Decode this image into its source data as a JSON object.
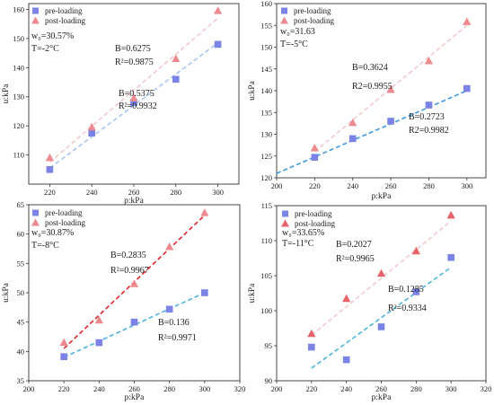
{
  "chart_data": [
    {
      "type": "scatter",
      "xlabel": "p:kPa",
      "ylabel": "u:kPa",
      "xlim": [
        210,
        310
      ],
      "ylim": [
        100,
        162
      ],
      "xticks": [
        "220",
        "240",
        "260",
        "280",
        "300"
      ],
      "yticks": [
        "110",
        "120",
        "130",
        "140",
        "150",
        "160"
      ],
      "legend": {
        "placement": "top-left",
        "entries": [
          "pre-loading",
          "post-loading"
        ]
      },
      "series": [
        {
          "name": "pre-loading",
          "marker": "square",
          "color": "#7b83e6",
          "x": [
            220,
            240,
            260,
            280,
            300
          ],
          "y": [
            105.0,
            117.5,
            128.0,
            136.0,
            148.0
          ],
          "fit": {
            "start": [
              220,
              105.5
            ],
            "end": [
              300,
              148.5
            ],
            "color": "#a7c6f1"
          }
        },
        {
          "name": "post-loading",
          "marker": "triangle",
          "color": "#ec8a8f",
          "x": [
            220,
            240,
            260,
            280,
            300
          ],
          "y": [
            109.0,
            119.5,
            129.5,
            143.0,
            159.5
          ],
          "fit": {
            "start": [
              220,
              107.5
            ],
            "end": [
              300,
              157.0
            ],
            "color": "#f3c9cd"
          }
        }
      ],
      "annotations": [
        "w₀=30.57%",
        "T=-2°C",
        "B=0.6275",
        "R²=0.9875",
        "B=0.5375",
        "R²=0.9932"
      ]
    },
    {
      "type": "scatter",
      "xlabel": "p:kPa",
      "ylabel": "u:kPa",
      "xlim": [
        200,
        310
      ],
      "ylim": [
        120,
        160
      ],
      "xticks": [
        "200",
        "220",
        "240",
        "260",
        "280",
        "300"
      ],
      "yticks": [
        "120",
        "125",
        "130",
        "135",
        "140",
        "145",
        "150",
        "155",
        "160"
      ],
      "legend": {
        "placement": "top-left",
        "entries": [
          "pre-loading",
          "post-loading"
        ]
      },
      "series": [
        {
          "name": "pre-loading",
          "marker": "square",
          "color": "#7b83e6",
          "x": [
            220,
            240,
            260,
            280,
            300
          ],
          "y": [
            124.7,
            129.0,
            133.0,
            136.7,
            140.5
          ],
          "fit": {
            "start": [
              200,
              121.0
            ],
            "end": [
              300,
              140.0
            ],
            "color": "#3d9ae6"
          }
        },
        {
          "name": "post-loading",
          "marker": "triangle",
          "color": "#ec8a8f",
          "x": [
            220,
            240,
            260,
            280,
            300
          ],
          "y": [
            126.8,
            132.6,
            140.2,
            146.8,
            155.8
          ],
          "fit": {
            "start": [
              220,
              126.0
            ],
            "end": [
              300,
              155.0
            ],
            "color": "#f3c9cd"
          }
        }
      ],
      "annotations": [
        "w₀=31.63",
        "T=-5°C",
        "B=0.3624",
        "R2=0.9955",
        "B=0.2723",
        "R2=0.9982"
      ]
    },
    {
      "type": "scatter",
      "xlabel": "p:kPa",
      "ylabel": "u:kPa",
      "xlim": [
        200,
        320
      ],
      "ylim": [
        35,
        65
      ],
      "xticks": [
        "200",
        "220",
        "240",
        "260",
        "280",
        "300",
        "320"
      ],
      "yticks": [
        "35",
        "40",
        "45",
        "50",
        "55",
        "60",
        "65"
      ],
      "legend": {
        "placement": "top-left",
        "entries": [
          "pre-loading",
          "post-loading"
        ]
      },
      "series": [
        {
          "name": "pre-loading",
          "marker": "square",
          "color": "#7b83e6",
          "x": [
            220,
            240,
            260,
            280,
            300
          ],
          "y": [
            39.1,
            41.5,
            45.0,
            47.2,
            50.0
          ],
          "fit": {
            "start": [
              220,
              39.0
            ],
            "end": [
              300,
              50.0
            ],
            "color": "#4fb3dc"
          }
        },
        {
          "name": "post-loading",
          "marker": "triangle",
          "color": "#ec8a8f",
          "x": [
            220,
            240,
            260,
            280,
            300
          ],
          "y": [
            41.5,
            45.3,
            51.5,
            57.8,
            63.6
          ],
          "fit": {
            "start": [
              220,
              40.5
            ],
            "end": [
              300,
              63.2
            ],
            "color": "#e1262d"
          }
        }
      ],
      "annotations": [
        "w₀=30.87%",
        "T=-8°C",
        "B=0.2835",
        "R²=0.9967",
        "B=0.136",
        "R²=0.9971"
      ]
    },
    {
      "type": "scatter",
      "xlabel": "p:kPa",
      "ylabel": "u:kPa",
      "xlim": [
        200,
        320
      ],
      "ylim": [
        90,
        115
      ],
      "xticks": [
        "200",
        "220",
        "240",
        "260",
        "280",
        "300",
        "320"
      ],
      "yticks": [
        "90",
        "95",
        "100",
        "105",
        "110",
        "115"
      ],
      "legend": {
        "placement": "top-left",
        "entries": [
          "pre-loading",
          "post-loading"
        ]
      },
      "series": [
        {
          "name": "pre-loading",
          "marker": "square",
          "color": "#7b83e6",
          "x": [
            220,
            240,
            260,
            280,
            300
          ],
          "y": [
            94.8,
            93.0,
            97.7,
            102.7,
            107.6
          ],
          "fit": {
            "start": [
              220,
              91.8
            ],
            "end": [
              300,
              106.2
            ],
            "color": "#4fb3dc"
          }
        },
        {
          "name": "post-loading",
          "marker": "triangle",
          "color": "#e8626a",
          "x": [
            220,
            240,
            260,
            280,
            300
          ],
          "y": [
            96.7,
            101.7,
            105.3,
            108.5,
            113.6
          ],
          "fit": {
            "start": [
              220,
              96.5
            ],
            "end": [
              300,
              112.8
            ],
            "color": "#f3c9cd"
          }
        }
      ],
      "annotations": [
        "w₀=33.65%",
        "T=-11°C",
        "B=0.2027",
        "R²=0.9965",
        "B=0.1285",
        "R²=0.9334"
      ]
    }
  ]
}
